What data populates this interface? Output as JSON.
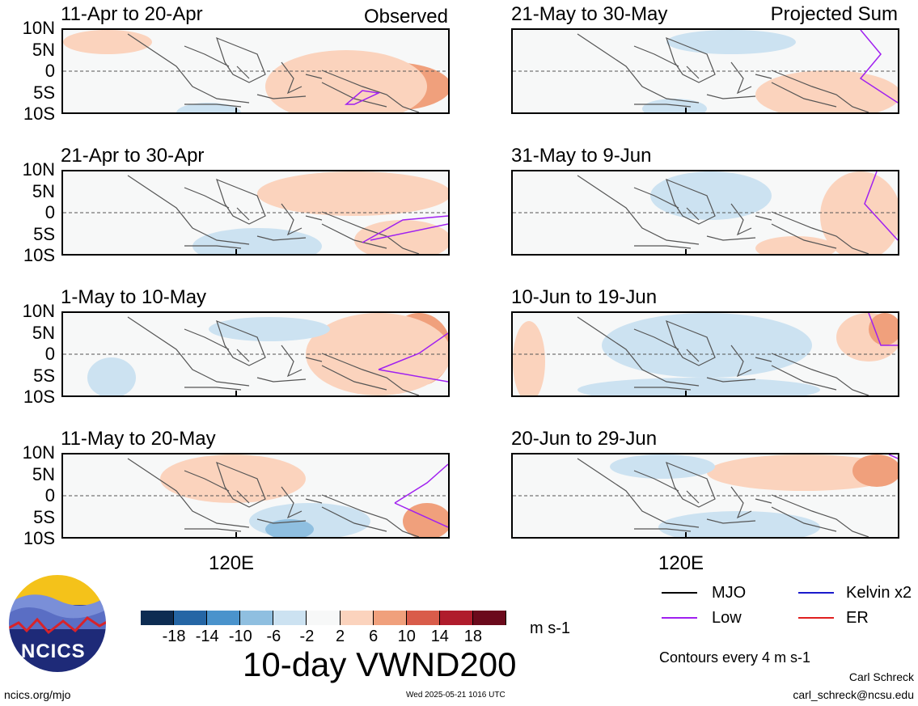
{
  "panels": [
    {
      "title": "11-Apr to 20-Apr",
      "tag": "Observed"
    },
    {
      "title": "21-Apr to 30-Apr",
      "tag": ""
    },
    {
      "title": "1-May to 10-May",
      "tag": ""
    },
    {
      "title": "11-May to 20-May",
      "tag": ""
    },
    {
      "title": "21-May to 30-May",
      "tag": "Projected Sum"
    },
    {
      "title": "31-May to 9-Jun",
      "tag": ""
    },
    {
      "title": "10-Jun to 19-Jun",
      "tag": ""
    },
    {
      "title": "20-Jun to 29-Jun",
      "tag": ""
    }
  ],
  "lat_labels": [
    "10N",
    "5N",
    "0",
    "5S",
    "10S"
  ],
  "lon_label": "120E",
  "colorbar": {
    "ticks": [
      "-18",
      "-14",
      "-10",
      "-6",
      "-2",
      "2",
      "6",
      "10",
      "14",
      "18"
    ],
    "colors": [
      "#0d2c52",
      "#2566a5",
      "#4a93cc",
      "#8fbfe0",
      "#cce2f1",
      "#f7f8f8",
      "#fbd3bd",
      "#f0a07c",
      "#d95c4a",
      "#b01c2c",
      "#6b0a1c"
    ],
    "units": "m s-1"
  },
  "plot_title": "10-day VWND200",
  "legend": {
    "items": [
      {
        "label": "MJO",
        "color": "#000000"
      },
      {
        "label": "Kelvin x2",
        "color": "#1a1acc"
      },
      {
        "label": "Low",
        "color": "#a020f0"
      },
      {
        "label": "ER",
        "color": "#e02020"
      }
    ],
    "contour_note": "Contours every 4 m s-1"
  },
  "logo": {
    "text": "NCICS"
  },
  "footer": {
    "url": "ncics.org/mjo",
    "timestamp": "Wed 2025-05-21 1016 UTC",
    "author": "Carl Schreck",
    "email": "carl_schreck@ncsu.edu"
  }
}
